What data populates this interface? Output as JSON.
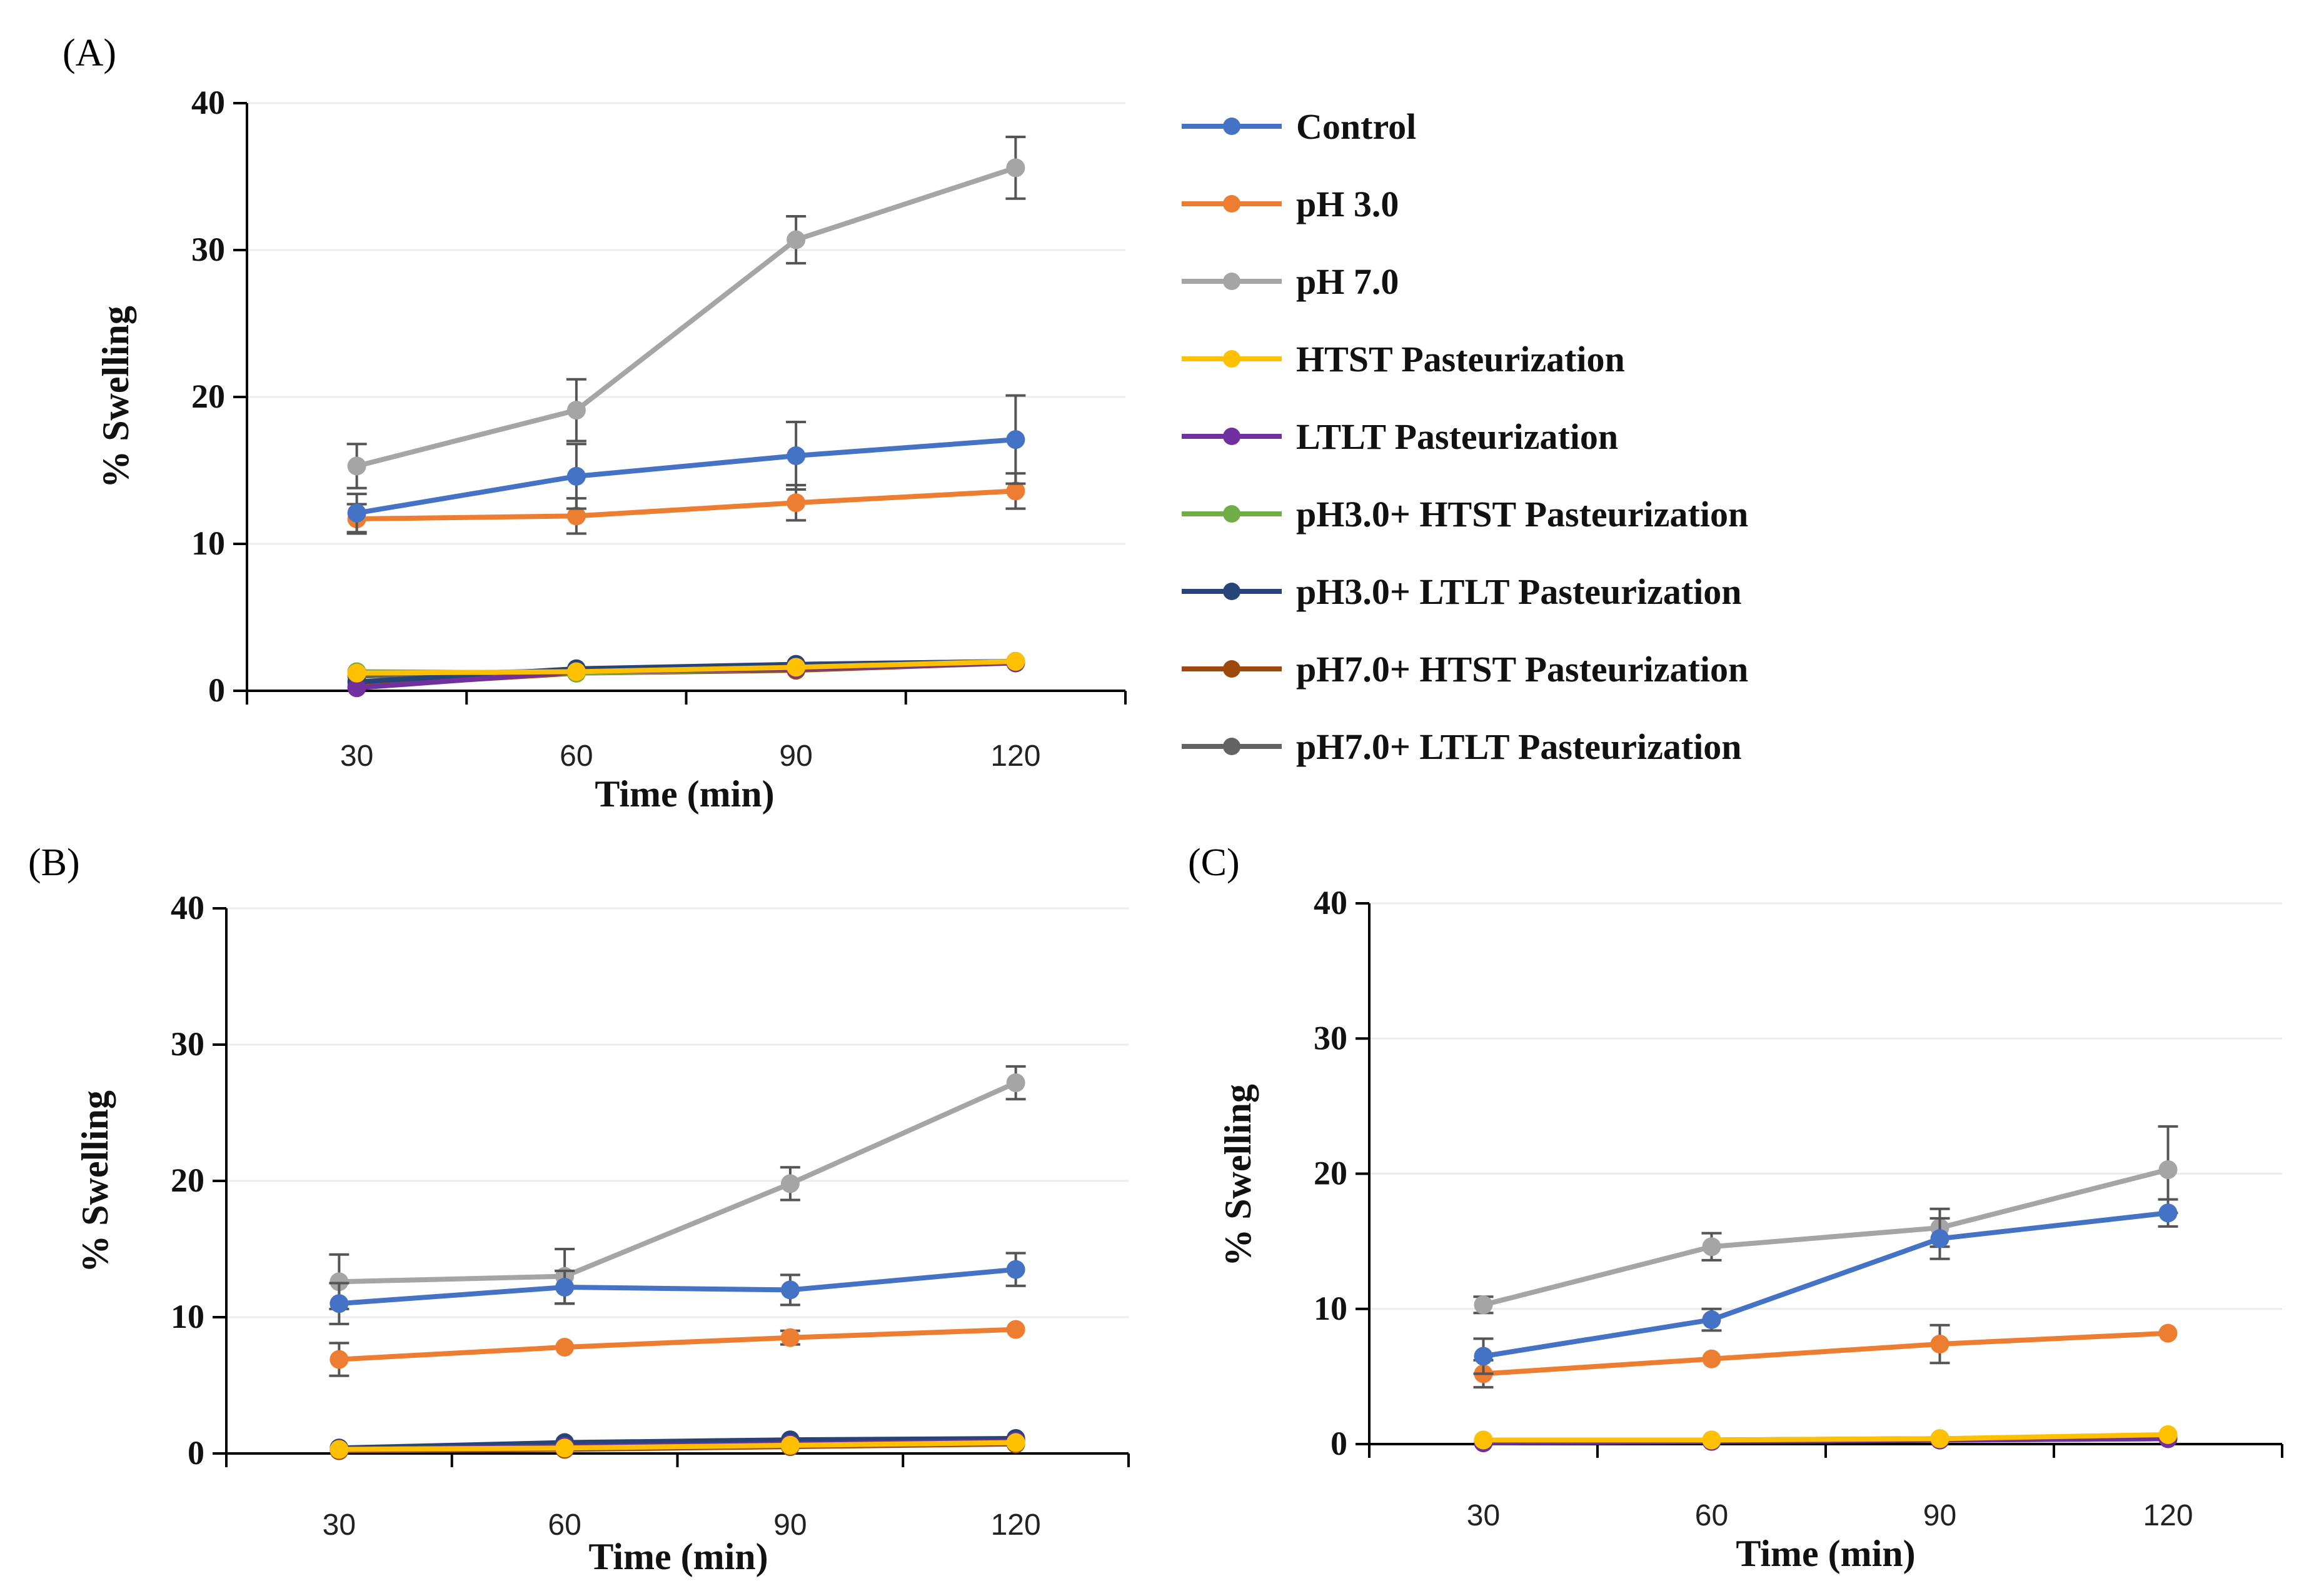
{
  "figure": {
    "colors": {
      "Control": "#4472c4",
      "pH 3.0": "#ed7d31",
      "pH 7.0": "#a5a5a5",
      "HTST Pasteurization": "#ffc000",
      "LTLT Pasteurization": "#7030a0",
      "pH3.0+ HTST Pasteurization": "#70ad47",
      "pH3.0+ LTLT Pasteurization": "#264478",
      "pH7.0+ HTST Pasteurization": "#9e480e",
      "pH7.0+ LTLT Pasteurization": "#636363"
    },
    "legend": [
      "Control",
      "pH 3.0",
      "pH 7.0",
      "HTST Pasteurization",
      "LTLT Pasteurization",
      "pH3.0+ HTST Pasteurization",
      "pH3.0+ LTLT Pasteurization",
      "pH7.0+ HTST Pasteurization",
      "pH7.0+ LTLT Pasteurization"
    ]
  },
  "chart_data": [
    {
      "panel": "(A)",
      "type": "line",
      "xlabel": "Time (min)",
      "ylabel": "% Swelling",
      "x": [
        30,
        60,
        90,
        120
      ],
      "categories": [
        "30",
        "60",
        "90",
        "120"
      ],
      "ylim": [
        0,
        40
      ],
      "yticks": [
        "0",
        "10",
        "20",
        "30",
        "40"
      ],
      "series": [
        {
          "name": "Control",
          "values": [
            12.1,
            14.6,
            16.0,
            17.1
          ],
          "errors": [
            1.3,
            2.2,
            2.3,
            3.0
          ]
        },
        {
          "name": "pH 3.0",
          "values": [
            11.7,
            11.9,
            12.8,
            13.6
          ],
          "errors": [
            1.0,
            1.2,
            1.2,
            1.2
          ]
        },
        {
          "name": "pH 7.0",
          "values": [
            15.3,
            19.1,
            30.7,
            35.6
          ],
          "errors": [
            1.5,
            2.1,
            1.6,
            2.1
          ]
        },
        {
          "name": "HTST Pasteurization",
          "values": [
            1.2,
            1.3,
            1.6,
            2.0
          ],
          "errors": [
            0,
            0,
            0,
            0
          ]
        },
        {
          "name": "LTLT Pasteurization",
          "values": [
            0.2,
            1.3,
            1.5,
            1.9
          ],
          "errors": [
            0,
            0,
            0,
            0
          ]
        },
        {
          "name": "pH3.0+ HTST Pasteurization",
          "values": [
            1.3,
            1.2,
            1.5,
            1.9
          ],
          "errors": [
            0,
            0,
            0,
            0
          ]
        },
        {
          "name": "pH3.0+ LTLT Pasteurization",
          "values": [
            0.6,
            1.5,
            1.8,
            2.0
          ],
          "errors": [
            0,
            0,
            0,
            0
          ]
        },
        {
          "name": "pH7.0+ HTST Pasteurization",
          "values": [
            0.3,
            1.2,
            1.4,
            1.9
          ],
          "errors": [
            0,
            0,
            0,
            0
          ]
        },
        {
          "name": "pH7.0+ LTLT Pasteurization",
          "values": [
            1.0,
            1.4,
            1.8,
            2.0
          ],
          "errors": [
            0,
            0,
            0,
            0
          ]
        }
      ]
    },
    {
      "panel": "(B)",
      "type": "line",
      "xlabel": "Time (min)",
      "ylabel": "% Swelling",
      "x": [
        30,
        60,
        90,
        120
      ],
      "categories": [
        "30",
        "60",
        "90",
        "120"
      ],
      "ylim": [
        0,
        40
      ],
      "yticks": [
        "0",
        "10",
        "20",
        "30",
        "40"
      ],
      "series": [
        {
          "name": "Control",
          "values": [
            11.0,
            12.2,
            12.0,
            13.5
          ],
          "errors": [
            1.5,
            1.2,
            1.1,
            1.2
          ]
        },
        {
          "name": "pH 3.0",
          "values": [
            6.9,
            7.8,
            8.5,
            9.1
          ],
          "errors": [
            1.2,
            0,
            0.5,
            0
          ]
        },
        {
          "name": "pH 7.0",
          "values": [
            12.6,
            13.0,
            19.8,
            27.2
          ],
          "errors": [
            2.0,
            2.0,
            1.2,
            1.2
          ]
        },
        {
          "name": "HTST Pasteurization",
          "values": [
            0.3,
            0.4,
            0.6,
            0.8
          ],
          "errors": [
            0,
            0,
            0,
            0
          ]
        },
        {
          "name": "LTLT Pasteurization",
          "values": [
            0.3,
            0.5,
            0.7,
            0.9
          ],
          "errors": [
            0,
            0,
            0,
            0
          ]
        },
        {
          "name": "pH3.0+ HTST Pasteurization",
          "values": [
            0.3,
            0.5,
            0.6,
            0.8
          ],
          "errors": [
            0,
            0,
            0,
            0
          ]
        },
        {
          "name": "pH3.0+ LTLT Pasteurization",
          "values": [
            0.4,
            0.8,
            1.0,
            1.1
          ],
          "errors": [
            0,
            0,
            0,
            0
          ]
        },
        {
          "name": "pH7.0+ HTST Pasteurization",
          "values": [
            0.2,
            0.3,
            0.5,
            0.7
          ],
          "errors": [
            0,
            0,
            0,
            0
          ]
        },
        {
          "name": "pH7.0+ LTLT Pasteurization",
          "values": [
            0.3,
            0.6,
            0.9,
            1.0
          ],
          "errors": [
            0,
            0,
            0,
            0
          ]
        }
      ]
    },
    {
      "panel": "(C)",
      "type": "line",
      "xlabel": "Time (min)",
      "ylabel": "% Swelling",
      "x": [
        30,
        60,
        90,
        120
      ],
      "categories": [
        "30",
        "60",
        "90",
        "120"
      ],
      "ylim": [
        0,
        40
      ],
      "yticks": [
        "0",
        "10",
        "20",
        "30",
        "40"
      ],
      "series": [
        {
          "name": "Control",
          "values": [
            6.5,
            9.2,
            15.2,
            17.1
          ],
          "errors": [
            1.3,
            0.8,
            1.5,
            1.0
          ]
        },
        {
          "name": "pH 3.0",
          "values": [
            5.2,
            6.3,
            7.4,
            8.2
          ],
          "errors": [
            1.0,
            0,
            1.4,
            0
          ]
        },
        {
          "name": "pH 7.0",
          "values": [
            10.3,
            14.6,
            16.0,
            20.3
          ],
          "errors": [
            0.6,
            1.0,
            1.4,
            3.2
          ]
        },
        {
          "name": "HTST Pasteurization",
          "values": [
            0.3,
            0.3,
            0.4,
            0.7
          ],
          "errors": [
            0,
            0,
            0,
            0
          ]
        },
        {
          "name": "LTLT Pasteurization",
          "values": [
            0.1,
            0.2,
            0.3,
            0.4
          ],
          "errors": [
            0,
            0,
            0,
            0
          ]
        },
        {
          "name": "pH3.0+ HTST Pasteurization",
          "values": [
            0.3,
            0.3,
            0.4,
            0.6
          ],
          "errors": [
            0,
            0,
            0,
            0
          ]
        },
        {
          "name": "pH3.0+ LTLT Pasteurization",
          "values": [
            0.1,
            0.2,
            0.3,
            0.4
          ],
          "errors": [
            0,
            0,
            0,
            0
          ]
        },
        {
          "name": "pH7.0+ HTST Pasteurization",
          "values": [
            0.1,
            0.2,
            0.3,
            0.5
          ],
          "errors": [
            0,
            0,
            0,
            0
          ]
        },
        {
          "name": "pH7.0+ LTLT Pasteurization",
          "values": [
            0.2,
            0.3,
            0.4,
            0.5
          ],
          "errors": [
            0,
            0,
            0,
            0
          ]
        }
      ]
    }
  ]
}
